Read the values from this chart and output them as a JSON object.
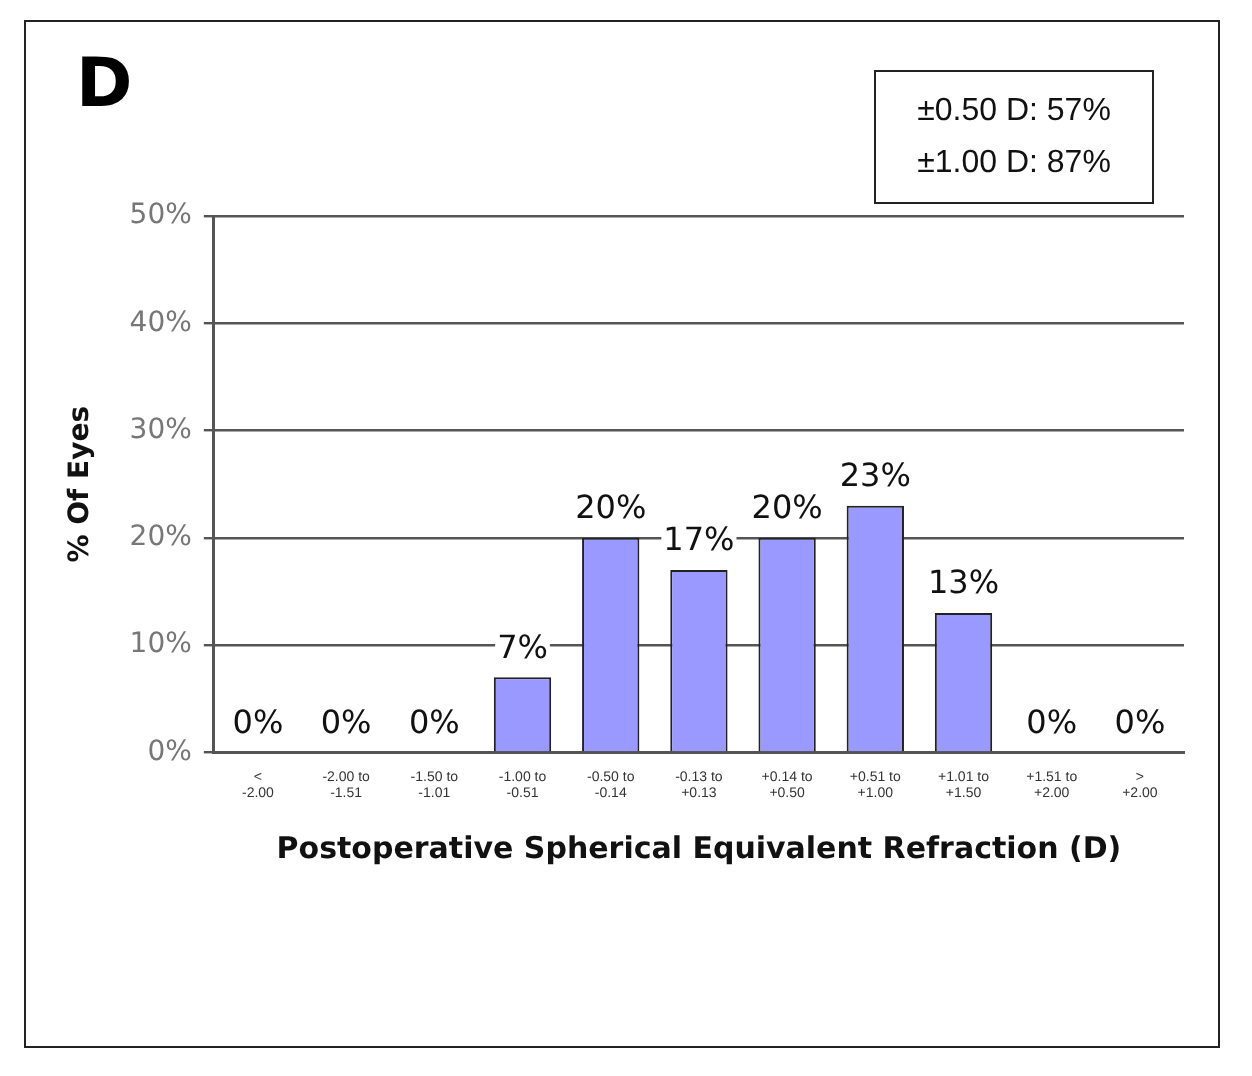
{
  "chart_data": {
    "type": "bar",
    "title": "D",
    "annotations": [
      "±0.50 D: 57%",
      "±1.00 D: 87%"
    ],
    "xlabel": "Postoperative Spherical Equivalent Refraction (D)",
    "ylabel": "% Of Eyes",
    "categories": [
      "<\n-2.00",
      "-2.00 to\n-1.51",
      "-1.50 to\n-1.01",
      "-1.00 to\n-0.51",
      "-0.50 to\n-0.14",
      "-0.13 to\n+0.13",
      "+0.14 to\n+0.50",
      "+0.51 to\n+1.00",
      "+1.01 to\n+1.50",
      "+1.51 to\n+2.00",
      ">\n+2.00"
    ],
    "values": [
      0,
      0,
      0,
      7,
      20,
      17,
      20,
      23,
      13,
      0,
      0
    ],
    "color": "#9999ff",
    "ylim": [
      0,
      50
    ],
    "yticks": [
      {
        "value": 0,
        "label": "0%"
      },
      {
        "value": 10,
        "label": "10%"
      },
      {
        "value": 20,
        "label": "20%"
      },
      {
        "value": 30,
        "label": "30%"
      },
      {
        "value": 40,
        "label": "40%"
      },
      {
        "value": 50,
        "label": "50%"
      }
    ],
    "value_labels": [
      "0%",
      "0%",
      "0%",
      "7%",
      "20%",
      "17%",
      "20%",
      "23%",
      "13%",
      "0%",
      "0%"
    ],
    "grid": "y"
  }
}
